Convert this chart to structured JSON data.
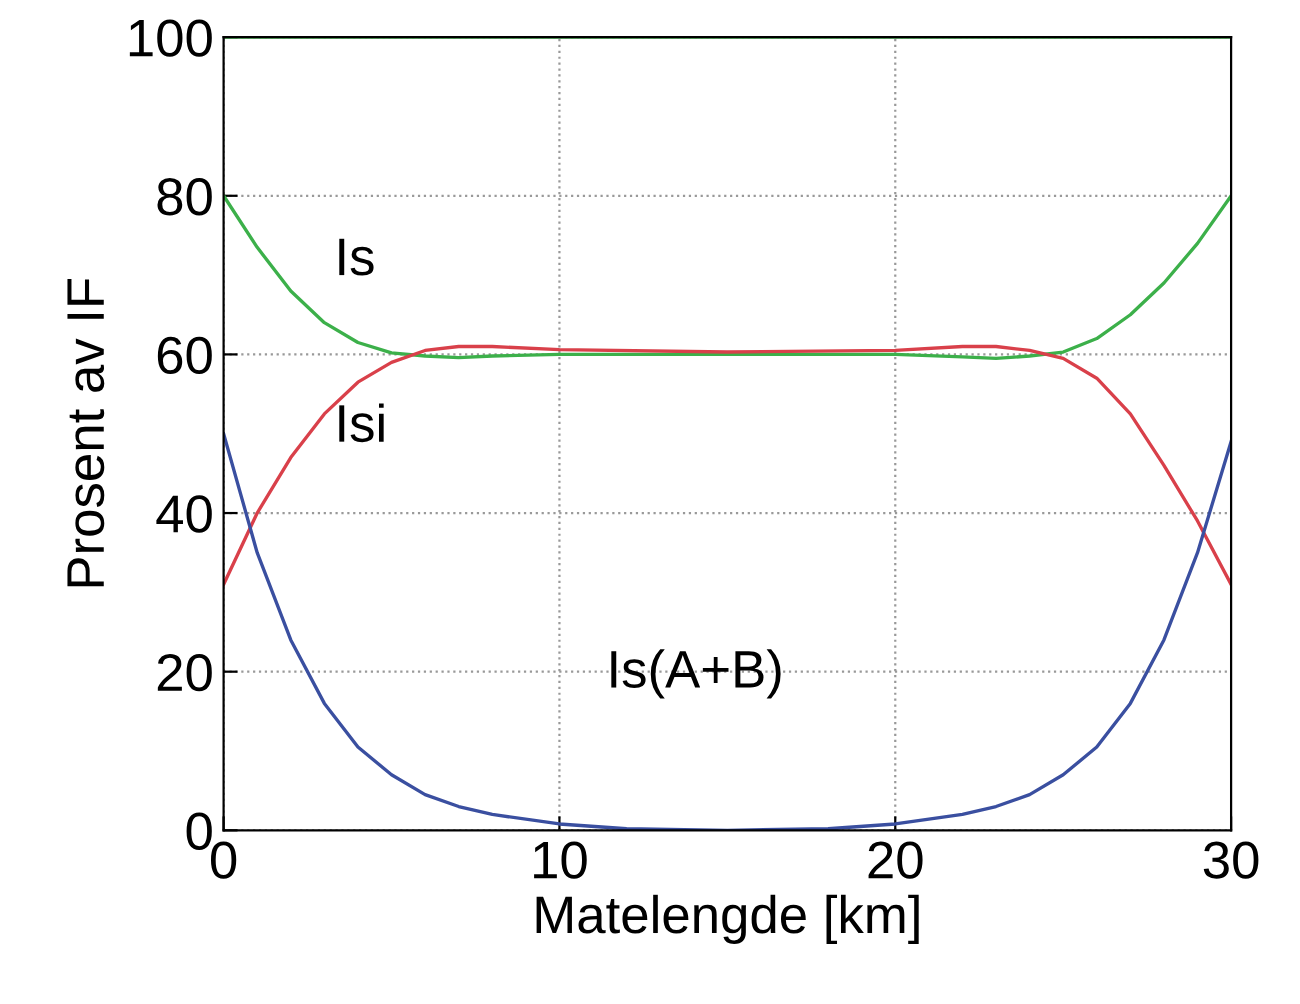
{
  "chart_data": {
    "type": "line",
    "xlabel": "Matelengde [km]",
    "ylabel": "Prosent av IF",
    "xlim": [
      0,
      30
    ],
    "xticks": [
      0,
      10,
      20,
      30
    ],
    "ylim": [
      0,
      100
    ],
    "yticks": [
      0,
      20,
      40,
      60,
      80,
      100
    ],
    "grid": true,
    "line_style": "solid",
    "series": [
      {
        "color": "#3cb04a",
        "x": [
          0,
          30
        ],
        "values": [
          100,
          100
        ]
      },
      {
        "name": "Is",
        "color": "#3cb04a",
        "x": [
          0,
          1,
          2,
          3,
          4,
          5,
          6,
          7,
          8,
          10,
          15,
          20,
          22,
          23,
          24,
          25,
          26,
          27,
          28,
          29,
          30
        ],
        "values": [
          80,
          73.5,
          68,
          64,
          61.5,
          60.2,
          59.8,
          59.6,
          59.8,
          60,
          60,
          60,
          59.7,
          59.5,
          59.8,
          60.3,
          62,
          65,
          69,
          74,
          80
        ]
      },
      {
        "name": "Isi",
        "color": "#d9404a",
        "x": [
          0,
          1,
          2,
          3,
          4,
          5,
          6,
          7,
          8,
          10,
          15,
          20,
          22,
          23,
          24,
          25,
          26,
          27,
          28,
          29,
          30
        ],
        "values": [
          31,
          40,
          47,
          52.5,
          56.5,
          59,
          60.5,
          61,
          61,
          60.6,
          60.3,
          60.5,
          61,
          61,
          60.5,
          59.5,
          57,
          52.5,
          46,
          39,
          31
        ]
      },
      {
        "name": "Is(A+B)",
        "color": "#3a4fa0",
        "x": [
          0,
          1,
          2,
          3,
          4,
          5,
          6,
          7,
          8,
          10,
          12,
          15,
          18,
          20,
          22,
          23,
          24,
          25,
          26,
          27,
          28,
          29,
          30
        ],
        "values": [
          50,
          35,
          24,
          16,
          10.5,
          7,
          4.5,
          3,
          2,
          0.8,
          0.2,
          0,
          0.2,
          0.8,
          2,
          3,
          4.5,
          7,
          10.5,
          16,
          24,
          35,
          49
        ]
      }
    ],
    "legend": false
  }
}
